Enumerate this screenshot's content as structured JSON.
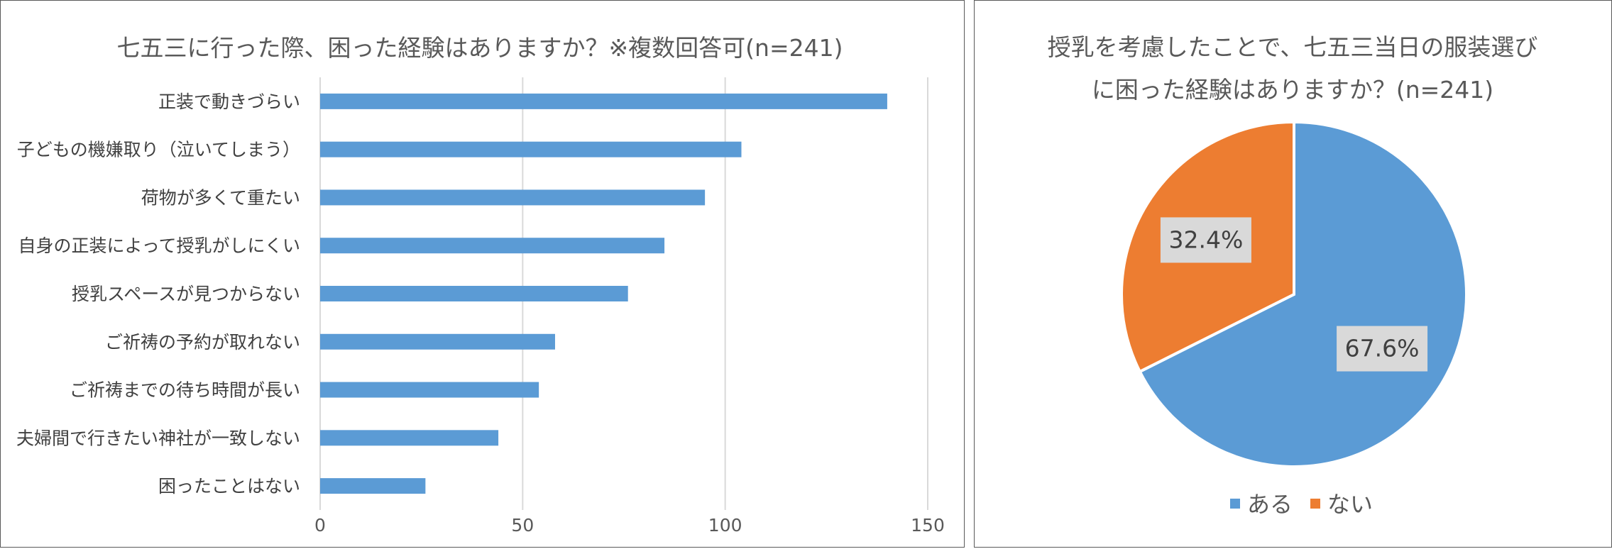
{
  "chart_data": [
    {
      "type": "bar",
      "orientation": "horizontal",
      "title": "七五三に行った際、困った経験はありますか？※複数回答可(n=241)",
      "categories": [
        "正装で動きづらい",
        "子どもの機嫌取り（泣いてしまう）",
        "荷物が多くて重たい",
        "自身の正装によって授乳がしにくい",
        "授乳スペースが見つからない",
        "ご祈祷の予約が取れない",
        "ご祈祷までの待ち時間が長い",
        "夫婦間で行きたい神社が一致しない",
        "困ったことはない"
      ],
      "values": [
        140,
        104,
        95,
        85,
        76,
        58,
        54,
        44,
        26
      ],
      "xlim": [
        0,
        150
      ],
      "xticks": [
        "0",
        "50",
        "100",
        "150"
      ],
      "grid": true,
      "color": "#5b9bd5"
    },
    {
      "type": "pie",
      "title_lines": [
        "授乳を考慮したことで、七五三当日の服装選び",
        "に困った経験はありますか？(n=241)"
      ],
      "categories": [
        "ある",
        "ない"
      ],
      "values": [
        67.6,
        32.4
      ],
      "labels": [
        "67.6%",
        "32.4%"
      ],
      "colors": [
        "#5b9bd5",
        "#ed7d31"
      ],
      "legend_position": "bottom"
    }
  ]
}
